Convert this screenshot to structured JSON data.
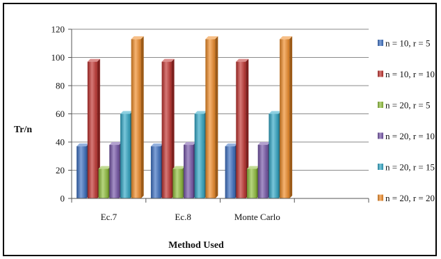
{
  "chart_data": {
    "type": "bar",
    "title": "",
    "xlabel": "Method Used",
    "ylabel": "Tr/n",
    "ylim": [
      0,
      120
    ],
    "yticks": [
      0,
      20,
      40,
      60,
      80,
      100,
      120
    ],
    "grid": true,
    "legend_position": "right",
    "categories": [
      "Ec.7",
      "Ec.8",
      "Monte Carlo",
      ""
    ],
    "series": [
      {
        "name": "n = 10, r = 5",
        "color": "#3a6fc2",
        "values": [
          37,
          37,
          37,
          null
        ]
      },
      {
        "name": "n = 10, r = 10",
        "color": "#c0302c",
        "values": [
          97,
          97,
          97,
          null
        ]
      },
      {
        "name": "n = 20, r = 5",
        "color": "#8fbe3a",
        "values": [
          21,
          21,
          21,
          null
        ]
      },
      {
        "name": "n = 20, r = 10",
        "color": "#7454a8",
        "values": [
          38,
          38,
          38,
          null
        ]
      },
      {
        "name": "n = 20, r = 15",
        "color": "#30a7c6",
        "values": [
          60,
          60,
          60,
          null
        ]
      },
      {
        "name": "n = 20, r = 20",
        "color": "#f08a24",
        "values": [
          113,
          113,
          113,
          null
        ]
      }
    ]
  }
}
